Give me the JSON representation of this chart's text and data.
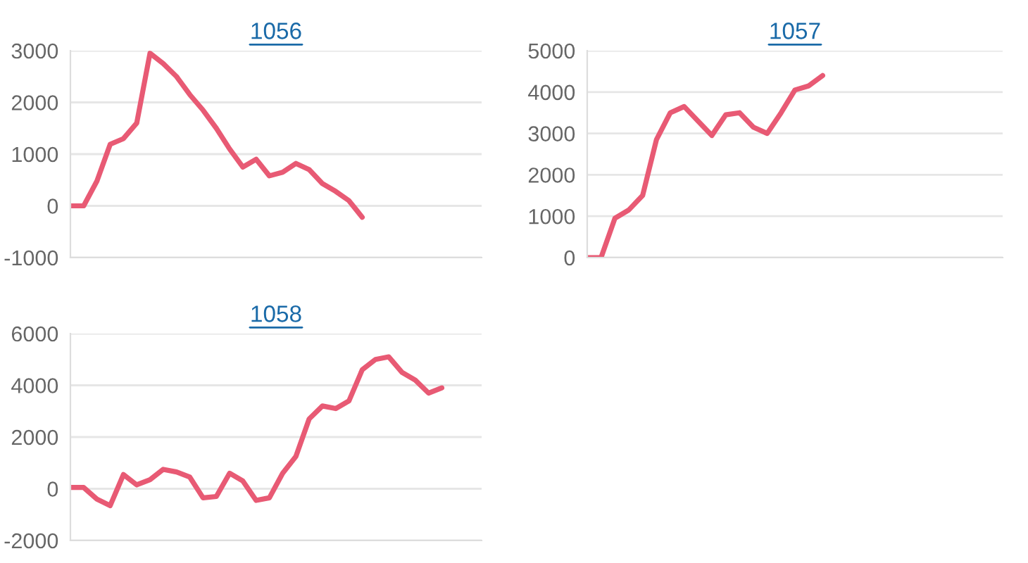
{
  "chart_data": [
    {
      "type": "line",
      "title": "1056",
      "categories": [
        null,
        null,
        null,
        null,
        null,
        null,
        null,
        null,
        null,
        null,
        null,
        null,
        null,
        null,
        null,
        null,
        null,
        null,
        null,
        null,
        null,
        null,
        null,
        null,
        null,
        null,
        null,
        null,
        null,
        null,
        null,
        null
      ],
      "series": [
        {
          "color": "#e85a74",
          "values": [
            0,
            0,
            480,
            1190,
            1300,
            1600,
            2950,
            2750,
            2500,
            2150,
            1850,
            1500,
            1100,
            750,
            900,
            580,
            650,
            820,
            700,
            430,
            280,
            100,
            -220,
            null,
            null,
            null,
            null,
            null,
            null,
            null,
            null,
            null
          ]
        }
      ],
      "ylim": [
        -1000,
        3000
      ],
      "yticks": [
        -1000,
        0,
        1000,
        2000,
        3000
      ],
      "grid": "y",
      "tick_labels": "y",
      "marker": "none",
      "line_style": "solid"
    },
    {
      "type": "line",
      "title": "1057",
      "categories": [
        null,
        null,
        null,
        null,
        null,
        null,
        null,
        null,
        null,
        null,
        null,
        null,
        null,
        null,
        null,
        null,
        null,
        null,
        null,
        null,
        null,
        null,
        null,
        null,
        null,
        null,
        null,
        null,
        null,
        null,
        null
      ],
      "series": [
        {
          "color": "#e85a74",
          "values": [
            0,
            0,
            950,
            1150,
            1500,
            2850,
            3500,
            3650,
            3300,
            2950,
            3450,
            3500,
            3150,
            3000,
            3500,
            4050,
            4150,
            4400,
            null,
            null,
            null,
            null,
            null,
            null,
            null,
            null,
            null,
            null,
            null,
            null,
            null
          ]
        }
      ],
      "ylim": [
        0,
        5000
      ],
      "yticks": [
        0,
        1000,
        2000,
        3000,
        4000,
        5000
      ],
      "grid": "y",
      "tick_labels": "y",
      "marker": "none",
      "line_style": "solid"
    },
    {
      "type": "line",
      "title": "1058",
      "categories": [
        null,
        null,
        null,
        null,
        null,
        null,
        null,
        null,
        null,
        null,
        null,
        null,
        null,
        null,
        null,
        null,
        null,
        null,
        null,
        null,
        null,
        null,
        null,
        null,
        null,
        null,
        null,
        null,
        null,
        null,
        null,
        null
      ],
      "series": [
        {
          "color": "#e85a74",
          "values": [
            50,
            50,
            -400,
            -650,
            550,
            150,
            350,
            750,
            650,
            450,
            -350,
            -300,
            600,
            300,
            -450,
            -350,
            600,
            1250,
            2700,
            3200,
            3100,
            3400,
            4600,
            5000,
            5100,
            4500,
            4200,
            3700,
            3900,
            null,
            null,
            null
          ]
        }
      ],
      "ylim": [
        -2000,
        6000
      ],
      "yticks": [
        -2000,
        0,
        2000,
        4000,
        6000
      ],
      "grid": "y",
      "tick_labels": "y",
      "marker": "none",
      "line_style": "solid"
    }
  ]
}
